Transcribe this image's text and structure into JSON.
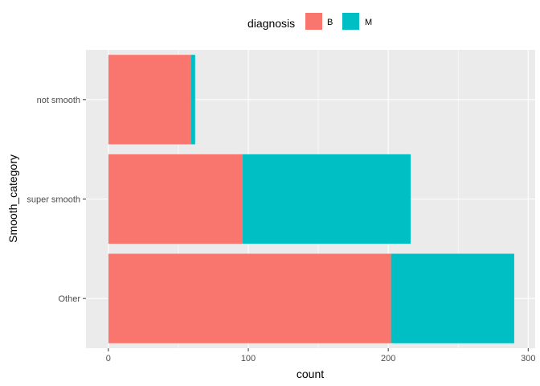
{
  "chart_data": {
    "type": "bar",
    "orientation": "horizontal",
    "stacked": true,
    "categories": [
      "not smooth",
      "super smooth",
      "Other"
    ],
    "series": [
      {
        "name": "B",
        "values": [
          59,
          96,
          202
        ],
        "color": "#F8766D"
      },
      {
        "name": "M",
        "values": [
          3,
          120,
          88
        ],
        "color": "#00BFC4"
      }
    ],
    "xlabel": "count",
    "ylabel": "Smooth_category",
    "xlim": [
      -16,
      305
    ],
    "x_ticks": [
      0,
      100,
      200,
      300
    ],
    "legend": {
      "title": "diagnosis",
      "position": "top",
      "labels": [
        "B",
        "M"
      ]
    },
    "grid": true,
    "panel_background": "#EBEBEB",
    "grid_color": "#FFFFFF"
  }
}
